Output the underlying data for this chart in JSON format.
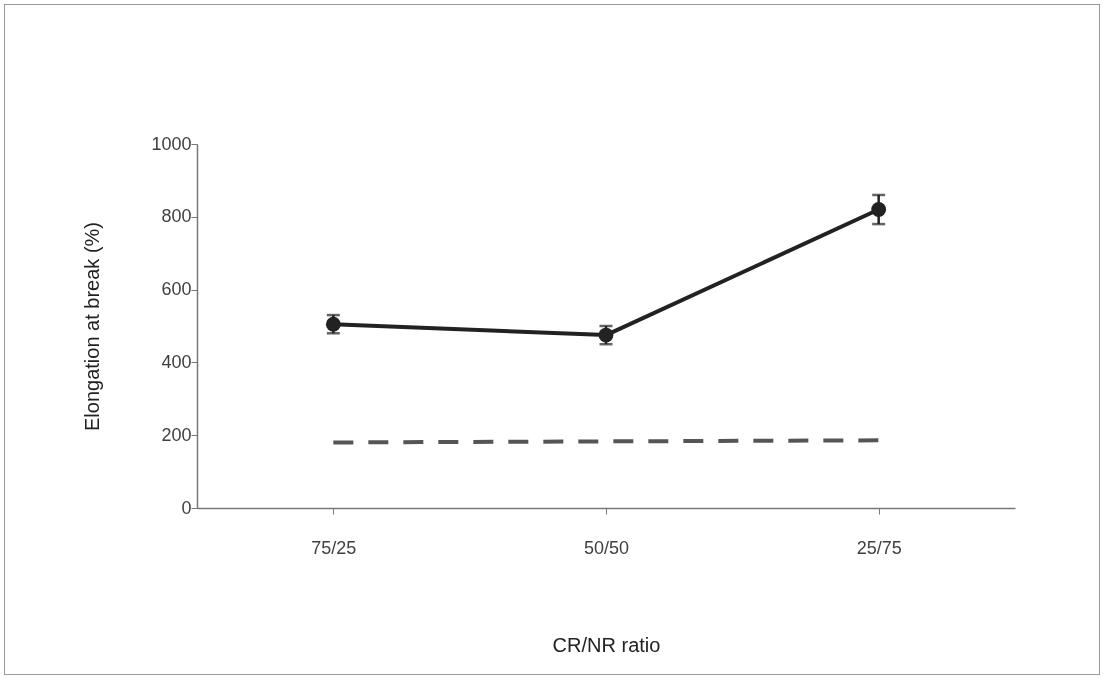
{
  "chart_data": {
    "type": "line",
    "xlabel": "CR/NR ratio",
    "ylabel": "Elongation at break (%)",
    "categories": [
      "75/25",
      "50/50",
      "25/75"
    ],
    "series": [
      {
        "color": "#222222",
        "values": [
          505,
          475,
          820
        ],
        "errors": [
          25,
          25,
          40
        ],
        "marker": "circle",
        "line_style": "solid"
      },
      {
        "color": "#555555",
        "values": [
          180,
          183,
          186
        ],
        "marker": "none",
        "line_style": "dashed"
      }
    ],
    "ylim": [
      0,
      1000
    ],
    "yticks": [
      0,
      200,
      400,
      600,
      800,
      1000
    ],
    "grid": false
  }
}
